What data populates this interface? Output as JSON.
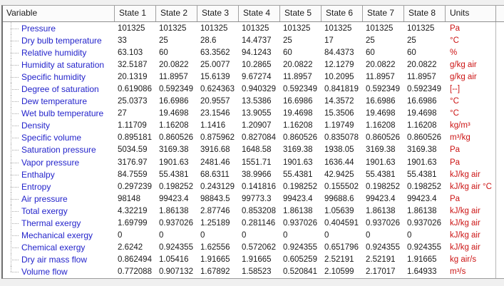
{
  "colors": {
    "label_blue": "#2424cb",
    "value_black": "#1a1a1a",
    "unit_red": "#cc1414",
    "outer_bg": "#f0f0f0",
    "header_bg": "#fbfbfb"
  },
  "table": {
    "columns": [
      "Variable",
      "State 1",
      "State 2",
      "State 3",
      "State 4",
      "State 5",
      "State 6",
      "State 7",
      "State 8",
      "Units"
    ],
    "rows": [
      {
        "label": "Pressure",
        "values": [
          "101325",
          "101325",
          "101325",
          "101325",
          "101325",
          "101325",
          "101325",
          "101325"
        ],
        "unit": "Pa"
      },
      {
        "label": "Dry bulb temperature",
        "values": [
          "33",
          "25",
          "28.6",
          "14.4737",
          "25",
          "17",
          "25",
          "25"
        ],
        "unit": "°C"
      },
      {
        "label": "Relative humidity",
        "values": [
          "63.103",
          "60",
          "63.3562",
          "94.1243",
          "60",
          "84.4373",
          "60",
          "60"
        ],
        "unit": "%"
      },
      {
        "label": "Humidity at saturation",
        "values": [
          "32.5187",
          "20.0822",
          "25.0077",
          "10.2865",
          "20.0822",
          "12.1279",
          "20.0822",
          "20.0822"
        ],
        "unit": "g/kg air"
      },
      {
        "label": "Specific humidity",
        "values": [
          "20.1319",
          "11.8957",
          "15.6139",
          "9.67274",
          "11.8957",
          "10.2095",
          "11.8957",
          "11.8957"
        ],
        "unit": "g/kg air"
      },
      {
        "label": "Degree of saturation",
        "values": [
          "0.619086",
          "0.592349",
          "0.624363",
          "0.940329",
          "0.592349",
          "0.841819",
          "0.592349",
          "0.592349"
        ],
        "unit": "[--]"
      },
      {
        "label": "Dew temperature",
        "values": [
          "25.0373",
          "16.6986",
          "20.9557",
          "13.5386",
          "16.6986",
          "14.3572",
          "16.6986",
          "16.6986"
        ],
        "unit": "°C"
      },
      {
        "label": "Wet bulb temperature",
        "values": [
          "27",
          "19.4698",
          "23.1546",
          "13.9055",
          "19.4698",
          "15.3506",
          "19.4698",
          "19.4698"
        ],
        "unit": "°C"
      },
      {
        "label": "Density",
        "values": [
          "1.11709",
          "1.16208",
          "1.1416",
          "1.20907",
          "1.16208",
          "1.19749",
          "1.16208",
          "1.16208"
        ],
        "unit": "kg/m³"
      },
      {
        "label": "Specific volume",
        "values": [
          "0.895181",
          "0.860526",
          "0.875962",
          "0.827084",
          "0.860526",
          "0.835078",
          "0.860526",
          "0.860526"
        ],
        "unit": "m³/kg"
      },
      {
        "label": "Saturation pressure",
        "values": [
          "5034.59",
          "3169.38",
          "3916.68",
          "1648.58",
          "3169.38",
          "1938.05",
          "3169.38",
          "3169.38"
        ],
        "unit": "Pa"
      },
      {
        "label": "Vapor pressure",
        "values": [
          "3176.97",
          "1901.63",
          "2481.46",
          "1551.71",
          "1901.63",
          "1636.44",
          "1901.63",
          "1901.63"
        ],
        "unit": "Pa"
      },
      {
        "label": "Enthalpy",
        "values": [
          "84.7559",
          "55.4381",
          "68.6311",
          "38.9966",
          "55.4381",
          "42.9425",
          "55.4381",
          "55.4381"
        ],
        "unit": "kJ/kg air"
      },
      {
        "label": "Entropy",
        "values": [
          "0.297239",
          "0.198252",
          "0.243129",
          "0.141816",
          "0.198252",
          "0.155502",
          "0.198252",
          "0.198252"
        ],
        "unit": "kJ/kg air °C"
      },
      {
        "label": "Air pressure",
        "values": [
          "98148",
          "99423.4",
          "98843.5",
          "99773.3",
          "99423.4",
          "99688.6",
          "99423.4",
          "99423.4"
        ],
        "unit": "Pa"
      },
      {
        "label": "Total exergy",
        "values": [
          "4.32219",
          "1.86138",
          "2.87746",
          "0.853208",
          "1.86138",
          "1.05639",
          "1.86138",
          "1.86138"
        ],
        "unit": "kJ/kg air"
      },
      {
        "label": "Thermal exergy",
        "values": [
          "1.69799",
          "0.937026",
          "1.25189",
          "0.281146",
          "0.937026",
          "0.404591",
          "0.937026",
          "0.937026"
        ],
        "unit": "kJ/kg air"
      },
      {
        "label": "Mechanical exergy",
        "values": [
          "0",
          "0",
          "0",
          "0",
          "0",
          "0",
          "0",
          "0"
        ],
        "unit": "kJ/kg air"
      },
      {
        "label": "Chemical exergy",
        "values": [
          "2.6242",
          "0.924355",
          "1.62556",
          "0.572062",
          "0.924355",
          "0.651796",
          "0.924355",
          "0.924355"
        ],
        "unit": "kJ/kg air"
      },
      {
        "label": "Dry air mass flow",
        "values": [
          "0.862494",
          "1.05416",
          "1.91665",
          "1.91665",
          "0.605259",
          "2.52191",
          "2.52191",
          "1.91665"
        ],
        "unit": "kg air/s"
      },
      {
        "label": "Volume flow",
        "values": [
          "0.772088",
          "0.907132",
          "1.67892",
          "1.58523",
          "0.520841",
          "2.10599",
          "2.17017",
          "1.64933"
        ],
        "unit": "m³/s"
      }
    ]
  }
}
